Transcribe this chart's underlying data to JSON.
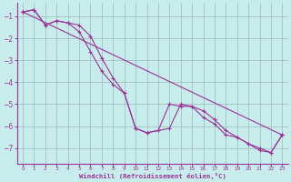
{
  "line1_x": [
    0,
    1,
    2,
    3,
    4,
    5,
    6,
    7,
    8,
    9,
    10,
    11,
    12,
    13,
    14,
    15,
    16,
    17,
    18,
    19,
    20,
    21,
    22,
    23
  ],
  "line1_y": [
    -0.8,
    -0.7,
    -1.4,
    -1.2,
    -1.3,
    -1.7,
    -2.6,
    -3.5,
    -4.1,
    -4.5,
    -6.1,
    -6.3,
    -6.2,
    -6.1,
    -5.0,
    -5.1,
    -5.6,
    -5.9,
    -6.4,
    -6.5,
    -6.8,
    -7.1,
    -7.2,
    -6.4
  ],
  "line2_x": [
    0,
    1,
    2,
    3,
    4,
    5,
    6,
    7,
    8,
    9,
    10,
    11,
    12,
    13,
    14,
    15,
    16,
    17,
    18,
    19,
    20,
    21,
    22,
    23
  ],
  "line2_y": [
    -0.8,
    -0.7,
    -1.4,
    -1.2,
    -1.3,
    -1.4,
    -1.9,
    -2.9,
    -3.8,
    -4.5,
    -6.1,
    -6.3,
    -6.2,
    -5.0,
    -5.1,
    -5.1,
    -5.3,
    -5.7,
    -6.2,
    -6.5,
    -6.8,
    -7.0,
    -7.2,
    -6.4
  ],
  "line3_x": [
    0,
    23
  ],
  "line3_y": [
    -0.8,
    -6.4
  ],
  "line_color": "#993399",
  "bg_color": "#c8ecec",
  "grid_color": "#99bbbb",
  "axis_color": "#993399",
  "tick_color": "#993399",
  "label_color": "#993399",
  "xlabel": "Windchill (Refroidissement éolien,°C)",
  "xlim": [
    -0.5,
    23.5
  ],
  "ylim": [
    -7.7,
    -0.4
  ],
  "yticks": [
    -7,
    -6,
    -5,
    -4,
    -3,
    -2,
    -1
  ],
  "xticks": [
    0,
    1,
    2,
    3,
    4,
    5,
    6,
    7,
    8,
    9,
    10,
    11,
    12,
    13,
    14,
    15,
    16,
    17,
    18,
    19,
    20,
    21,
    22,
    23
  ]
}
